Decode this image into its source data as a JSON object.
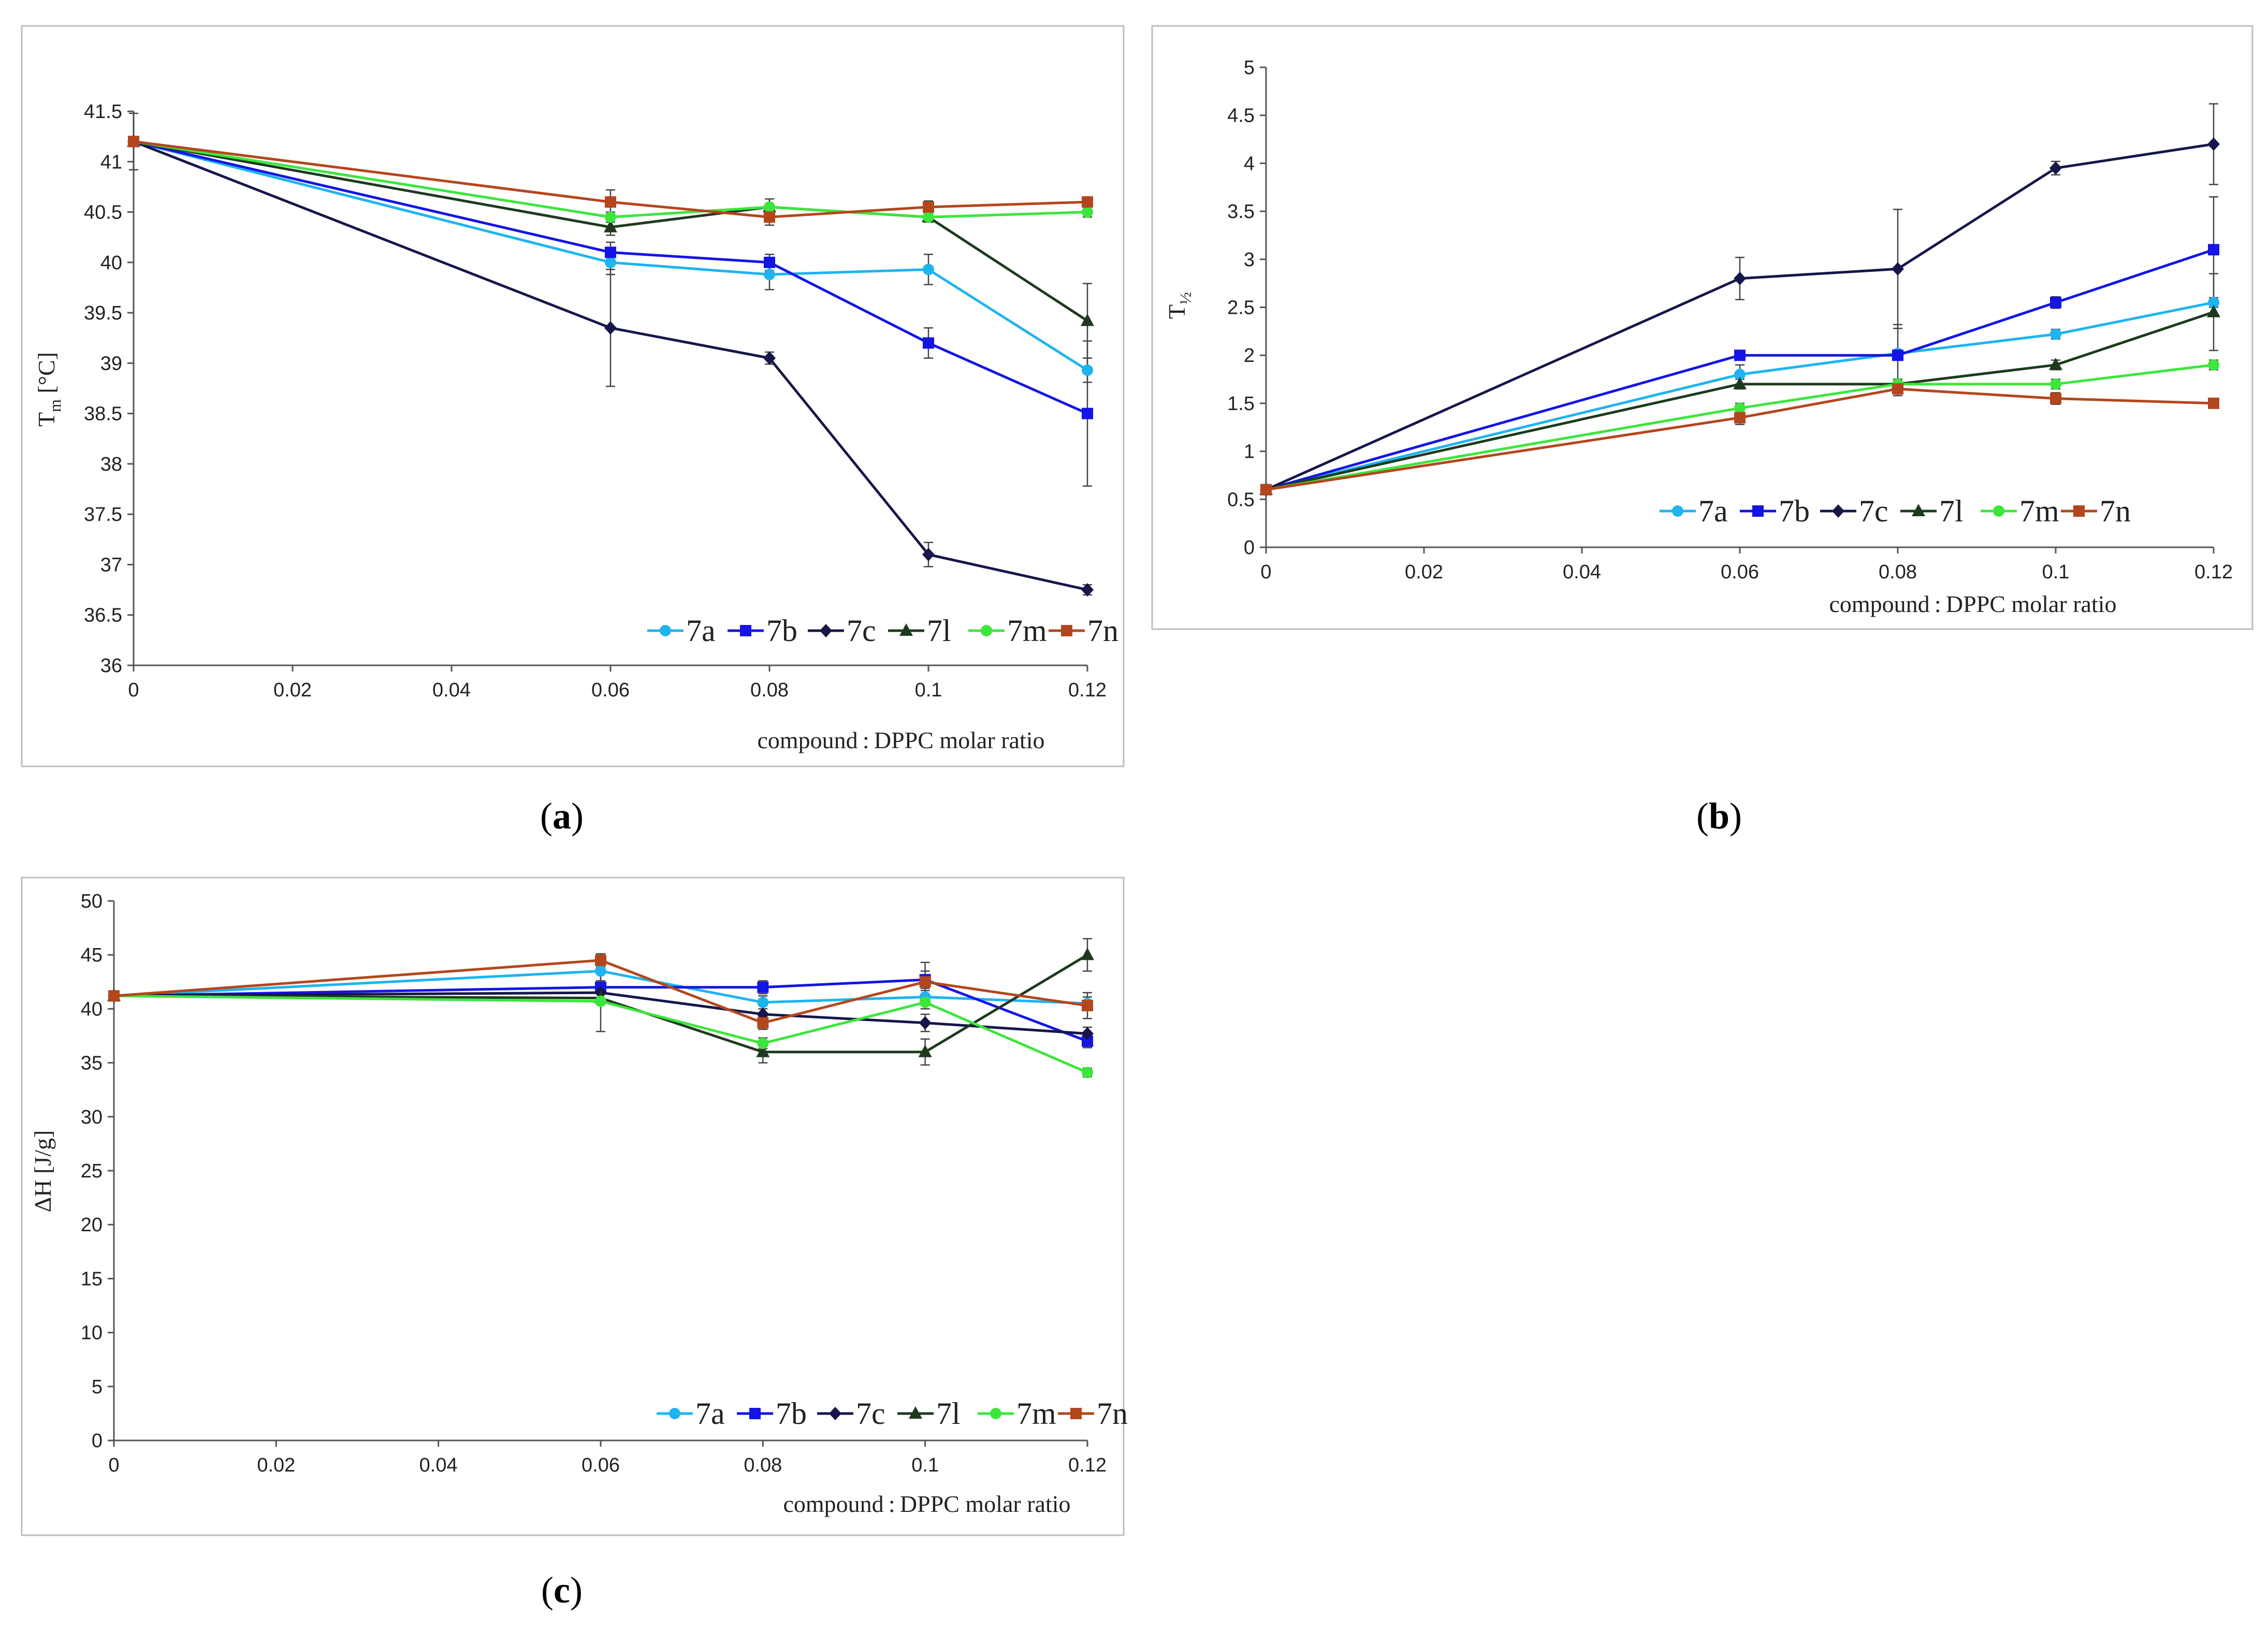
{
  "series_styles": [
    {
      "name": "7a",
      "color": "#1EB4F0",
      "marker": "circle"
    },
    {
      "name": "7b",
      "color": "#1414E6",
      "marker": "square"
    },
    {
      "name": "7c",
      "color": "#16164A",
      "marker": "diamond"
    },
    {
      "name": "7l",
      "color": "#1E3A1E",
      "marker": "triangle"
    },
    {
      "name": "7m",
      "color": "#3CE63C",
      "marker": "circle"
    },
    {
      "name": "7n",
      "color": "#B4461E",
      "marker": "square"
    }
  ],
  "chart_data": [
    {
      "type": "line",
      "panel_label": "a",
      "ylabel_main": "T",
      "ylabel_sub": "m",
      "ylabel_tail": " [°C]",
      "xlabel": "compound : DPPC molar ratio",
      "xlim": [
        0,
        0.12
      ],
      "ylim": [
        36,
        41.5
      ],
      "xticks": [
        "0",
        "0.02",
        "0.04",
        "0.06",
        "0.08",
        "0.1",
        "0.12"
      ],
      "yticks": [
        "36",
        "36.5",
        "37",
        "37.5",
        "38",
        "38.5",
        "39",
        "39.5",
        "40",
        "40.5",
        "41",
        "41.5"
      ],
      "x": [
        0,
        0.06,
        0.08,
        0.1,
        0.12
      ],
      "series": [
        {
          "name": "7a",
          "values": [
            41.2,
            40.0,
            39.88,
            39.93,
            38.93
          ],
          "errors": [
            0,
            0.12,
            0.15,
            0.15,
            0.12
          ]
        },
        {
          "name": "7b",
          "values": [
            41.2,
            40.1,
            40.0,
            39.2,
            38.5
          ],
          "errors": [
            0,
            0.1,
            0.08,
            0.15,
            0.72
          ]
        },
        {
          "name": "7c",
          "values": [
            41.2,
            39.35,
            39.05,
            37.1,
            36.75
          ],
          "errors": [
            0,
            0.58,
            0.06,
            0.12,
            0.05
          ]
        },
        {
          "name": "7l",
          "values": [
            41.2,
            40.35,
            40.55,
            40.45,
            39.42
          ],
          "errors": [
            0.28,
            0.08,
            0.08,
            0.05,
            0.37
          ]
        },
        {
          "name": "7m",
          "values": [
            41.2,
            40.45,
            40.55,
            40.45,
            40.5
          ],
          "errors": [
            0,
            0.05,
            0.08,
            0.05,
            0.05
          ]
        },
        {
          "name": "7n",
          "values": [
            41.2,
            40.6,
            40.45,
            40.55,
            40.6
          ],
          "errors": [
            0,
            0.12,
            0.08,
            0.06,
            0.05
          ]
        }
      ]
    },
    {
      "type": "line",
      "panel_label": "b",
      "ylabel_main": "T",
      "ylabel_sub": "½",
      "ylabel_tail": "",
      "xlabel": "compound : DPPC molar ratio",
      "xlim": [
        0,
        0.12
      ],
      "ylim": [
        0,
        5
      ],
      "xticks": [
        "0",
        "0.02",
        "0.04",
        "0.06",
        "0.08",
        "0.1",
        "0.12"
      ],
      "yticks": [
        "0",
        "0.5",
        "1",
        "1.5",
        "2",
        "2.5",
        "3",
        "3.5",
        "4",
        "4.5",
        "5"
      ],
      "x": [
        0,
        0.06,
        0.08,
        0.1,
        0.12
      ],
      "series": [
        {
          "name": "7a",
          "values": [
            0.6,
            1.8,
            2.02,
            2.22,
            2.55
          ],
          "errors": [
            0,
            0.1,
            0.3,
            0.05,
            0.05
          ]
        },
        {
          "name": "7b",
          "values": [
            0.6,
            2.0,
            2.0,
            2.55,
            3.1
          ],
          "errors": [
            0,
            0.05,
            0.05,
            0.06,
            0.55
          ]
        },
        {
          "name": "7c",
          "values": [
            0.6,
            2.8,
            2.9,
            3.95,
            4.2
          ],
          "errors": [
            0,
            0.22,
            0.62,
            0.07,
            0.42
          ]
        },
        {
          "name": "7l",
          "values": [
            0.6,
            1.7,
            1.7,
            1.9,
            2.45
          ],
          "errors": [
            0,
            0.05,
            0.05,
            0.05,
            0.4
          ]
        },
        {
          "name": "7m",
          "values": [
            0.6,
            1.45,
            1.7,
            1.7,
            1.9
          ],
          "errors": [
            0,
            0.05,
            0.05,
            0.05,
            0.05
          ]
        },
        {
          "name": "7n",
          "values": [
            0.6,
            1.35,
            1.65,
            1.55,
            1.5
          ],
          "errors": [
            0,
            0.07,
            0.07,
            0.06,
            0.03
          ]
        }
      ]
    },
    {
      "type": "line",
      "panel_label": "c",
      "ylabel_main": "ΔH [J/g]",
      "ylabel_sub": "",
      "ylabel_tail": "",
      "xlabel": "compound : DPPC molar ratio",
      "xlim": [
        0,
        0.12
      ],
      "ylim": [
        0,
        50
      ],
      "xticks": [
        "0",
        "0.02",
        "0.04",
        "0.06",
        "0.08",
        "0.1",
        "0.12"
      ],
      "yticks": [
        "0",
        "5",
        "10",
        "15",
        "20",
        "25",
        "30",
        "35",
        "40",
        "45",
        "50"
      ],
      "x": [
        0,
        0.06,
        0.08,
        0.1,
        0.12
      ],
      "series": [
        {
          "name": "7a",
          "values": [
            41.2,
            43.5,
            40.6,
            41.1,
            40.5
          ],
          "errors": [
            0,
            1.2,
            0.6,
            0.6,
            0.6
          ]
        },
        {
          "name": "7b",
          "values": [
            41.2,
            42.0,
            42.0,
            42.7,
            37.0
          ],
          "errors": [
            0,
            0.6,
            0.6,
            0.8,
            0.6
          ]
        },
        {
          "name": "7c",
          "values": [
            41.2,
            41.5,
            39.5,
            38.7,
            37.7
          ],
          "errors": [
            0,
            0.6,
            0.8,
            0.8,
            0.6
          ]
        },
        {
          "name": "7l",
          "values": [
            41.2,
            41.0,
            36.0,
            36.0,
            45.0
          ],
          "errors": [
            0,
            0.6,
            1.0,
            1.2,
            1.5
          ]
        },
        {
          "name": "7m",
          "values": [
            41.2,
            40.7,
            36.8,
            40.6,
            34.1
          ],
          "errors": [
            0,
            2.8,
            0.5,
            0.6,
            0.4
          ]
        },
        {
          "name": "7n",
          "values": [
            41.2,
            44.5,
            38.7,
            42.5,
            40.3
          ],
          "errors": [
            0,
            0.6,
            0.6,
            1.8,
            1.2
          ]
        }
      ]
    }
  ]
}
